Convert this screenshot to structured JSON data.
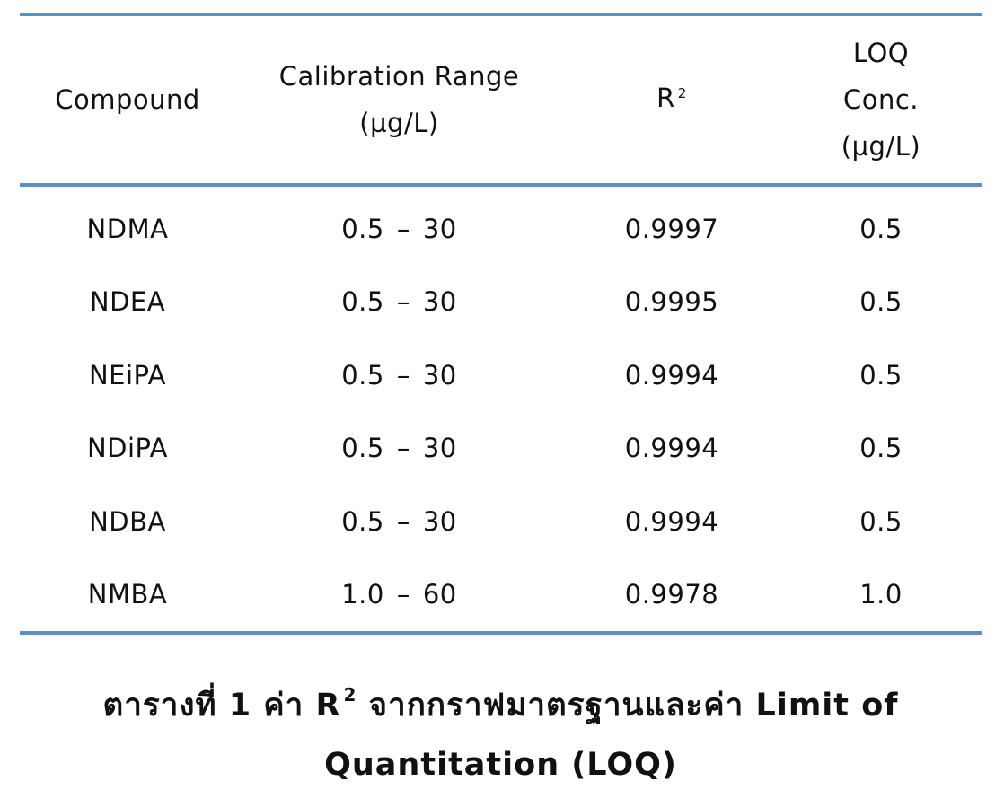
{
  "table": {
    "headers": {
      "compound": "Compound",
      "range_line1": "Calibration Range",
      "range_line2": "(µg/L)",
      "r2_base": "R",
      "r2_sup": "2",
      "loq_line1": "LOQ",
      "loq_line2": "Conc.",
      "loq_line3": "(µg/L)"
    },
    "rows": [
      {
        "compound": "NDMA",
        "range_low": "0.5",
        "range_dash": "–",
        "range_high": "30",
        "r2": "0.9997",
        "loq": "0.5"
      },
      {
        "compound": "NDEA",
        "range_low": "0.5",
        "range_dash": "–",
        "range_high": "30",
        "r2": "0.9995",
        "loq": "0.5"
      },
      {
        "compound": "NEiPA",
        "range_low": "0.5",
        "range_dash": "–",
        "range_high": "30",
        "r2": "0.9994",
        "loq": "0.5"
      },
      {
        "compound": "NDiPA",
        "range_low": "0.5",
        "range_dash": "–",
        "range_high": "30",
        "r2": "0.9994",
        "loq": "0.5"
      },
      {
        "compound": "NDBA",
        "range_low": "0.5",
        "range_dash": "–",
        "range_high": "30",
        "r2": "0.9994",
        "loq": "0.5"
      },
      {
        "compound": "NMBA",
        "range_low": "1.0",
        "range_dash": "–",
        "range_high": "60",
        "r2": "0.9978",
        "loq": "1.0"
      }
    ]
  },
  "caption": {
    "part1": "ตารางที่ 1 ค่า R",
    "sup": "2",
    "part2": " จากกราฟมาตรฐานและค่า Limit of",
    "line2": "Quantitation (LOQ)"
  },
  "colors": {
    "rule": "#5b8fc8",
    "text": "#111111"
  }
}
